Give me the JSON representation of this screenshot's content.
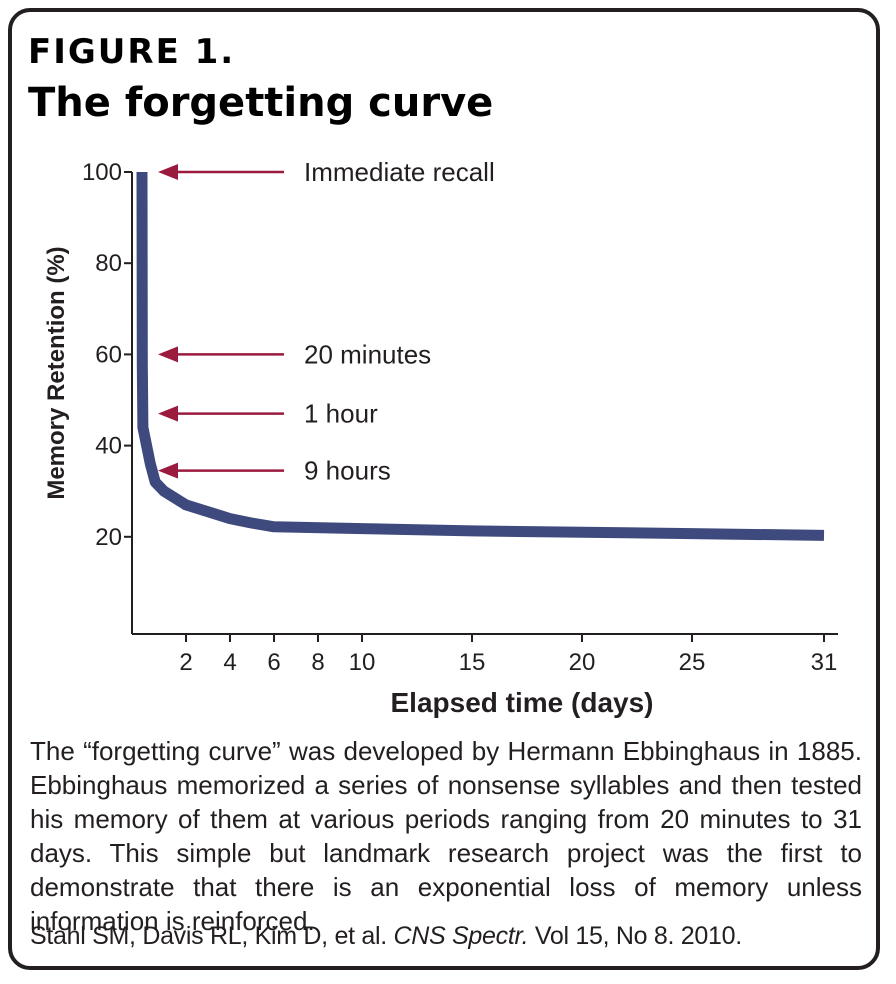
{
  "figure_label": "FIGURE 1.",
  "title": "The forgetting curve",
  "caption": "The “forgetting curve” was developed by Hermann Ebbinghaus in 1885. Ebbinghaus memorized a series of nonsense syllables and then tested his memory of them at various periods ranging from 20 minutes to 31 days. This simple but landmark research project was the first to demonstrate that there is an exponential loss of memory unless information is reinforced.",
  "citation": {
    "authors": "Stahl SM, Davis RL, Kim D, et al.",
    "journal": "CNS Spectr.",
    "details": "Vol 15, No 8. 2010."
  },
  "colors": {
    "curve": "#3e4a7e",
    "arrow": "#9b1b3e",
    "axis": "#231f20",
    "text": "#231f20"
  },
  "chart_data": {
    "type": "line",
    "xlabel": "Elapsed time (days)",
    "ylabel": "Memory Retention (%)",
    "xlim": [
      0,
      31
    ],
    "ylim": [
      0,
      100
    ],
    "x_ticks": [
      2,
      4,
      6,
      8,
      10,
      15,
      20,
      25,
      31
    ],
    "y_ticks": [
      20,
      40,
      60,
      80,
      100
    ],
    "grid": false,
    "series": [
      {
        "x": [
          0,
          0.014,
          0.042,
          0.375,
          0.6,
          1,
          2,
          3,
          4,
          5,
          6,
          10,
          15,
          20,
          25,
          31
        ],
        "y": [
          100,
          58,
          44,
          36,
          32,
          30,
          27,
          25.5,
          24,
          23,
          22.2,
          21.8,
          21.3,
          21,
          20.7,
          20.3
        ]
      }
    ],
    "annotations": [
      {
        "text": "Immediate recall",
        "y": 100
      },
      {
        "text": "20 minutes",
        "y": 60
      },
      {
        "text": "1 hour",
        "y": 47
      },
      {
        "text": "9 hours",
        "y": 34.5
      }
    ]
  }
}
